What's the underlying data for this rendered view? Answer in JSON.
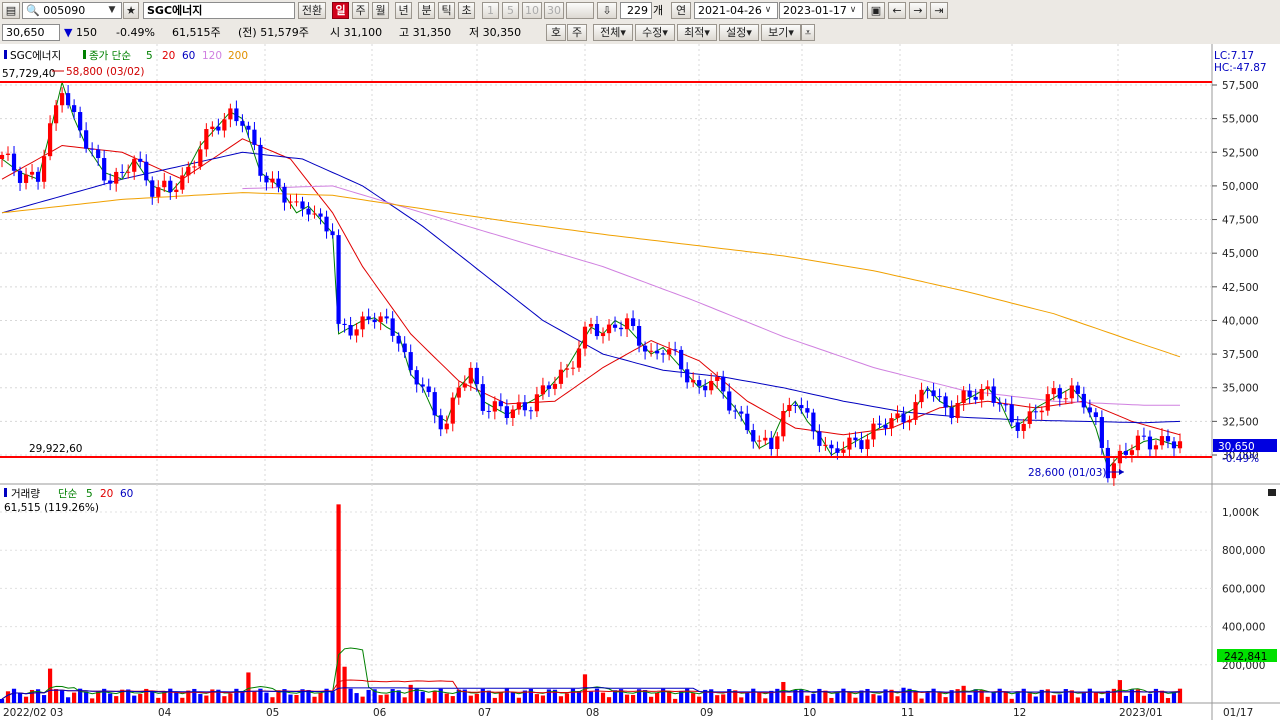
{
  "toolbar": {
    "code": "005090",
    "star": "★",
    "name": "SGC에너지",
    "switch_label": "전환",
    "period_tabs": [
      "일",
      "주",
      "월",
      "년",
      "분",
      "틱",
      "초"
    ],
    "minute_tabs": [
      "1",
      "5",
      "10",
      "30"
    ],
    "count": "229",
    "count_unit": "개",
    "range_label": "연",
    "date_from": "2021-04-26",
    "date_to": "2023-01-17",
    "save_icon": "save-icon"
  },
  "info_bar": {
    "price": "30,650",
    "change_arrow": "▼",
    "change": "150",
    "change_pct": "-0.49%",
    "volume": "61,515주",
    "prev_volume": "(전) 51,579주",
    "open": "시 31,100",
    "high": "고 31,350",
    "low": "저 30,350",
    "btn_ho": "호",
    "btn_ju": "주",
    "menus": [
      "전체",
      "수정",
      "최적",
      "설정",
      "보기"
    ]
  },
  "legend": {
    "name": "SGC에너지",
    "ma_label": "종가 단순",
    "ma_periods": [
      "5",
      "20",
      "60",
      "120",
      "200"
    ],
    "ma_colors": [
      "#008000",
      "#e00000",
      "#0000c0",
      "#d080e0",
      "#f0a000"
    ],
    "vol_label": "거래량",
    "vol_ma_label": "단순",
    "vol_ma_periods": [
      "5",
      "20",
      "60"
    ],
    "vol_ma_colors": [
      "#008000",
      "#e00000",
      "#0000c0"
    ],
    "vol_value": "61,515 (119.26%)",
    "lc": "LC:7.17",
    "hc": "HC:-47.87"
  },
  "annotations": {
    "high_level": "57,729,40",
    "high_note": "58,800 (03/02)",
    "low_level": "29,922,60",
    "low_note": "28,600 (01/03)",
    "current_price": "30,650",
    "current_pct": "-0.49%",
    "vol_marker": "242,841"
  },
  "colors": {
    "up": "#ff0000",
    "down": "#0000ff",
    "ref_line": "#ff0000"
  },
  "chart_data": [
    {
      "type": "candlestick",
      "title": "SGC에너지",
      "y_ticks": [
        "57,500",
        "55,000",
        "52,500",
        "50,000",
        "47,500",
        "45,000",
        "42,500",
        "40,000",
        "37,500",
        "35,000",
        "32,500",
        "30,000"
      ],
      "x_ticks": [
        "2022/02 03",
        "04",
        "05",
        "06",
        "07",
        "08",
        "09",
        "10",
        "11",
        "12",
        "2023/01",
        "01/17"
      ],
      "ylim": [
        27500,
        60500
      ],
      "reference_lines": [
        57729,
        29922
      ],
      "high": {
        "value": 58800,
        "date": "03/02"
      },
      "low": {
        "value": 28600,
        "date": "01/03"
      },
      "close_path": [
        [
          0,
          52000
        ],
        [
          3,
          51000
        ],
        [
          6,
          50500
        ],
        [
          8,
          54000
        ],
        [
          10,
          57700
        ],
        [
          12,
          55000
        ],
        [
          14,
          53000
        ],
        [
          17,
          51000
        ],
        [
          20,
          50500
        ],
        [
          22,
          52000
        ],
        [
          25,
          50000
        ],
        [
          28,
          49500
        ],
        [
          30,
          50500
        ],
        [
          33,
          53000
        ],
        [
          36,
          54500
        ],
        [
          38,
          55500
        ],
        [
          40,
          55000
        ],
        [
          43,
          51000
        ],
        [
          46,
          50000
        ],
        [
          49,
          48000
        ],
        [
          51,
          48500
        ],
        [
          53,
          47500
        ],
        [
          55,
          46500
        ],
        [
          56,
          39000
        ],
        [
          58,
          39500
        ],
        [
          60,
          40000
        ],
        [
          62,
          40200
        ],
        [
          64,
          39500
        ],
        [
          66,
          39000
        ],
        [
          68,
          36000
        ],
        [
          70,
          35000
        ],
        [
          72,
          33000
        ],
        [
          74,
          32500
        ],
        [
          76,
          35000
        ],
        [
          78,
          36000
        ],
        [
          80,
          34000
        ],
        [
          82,
          33500
        ],
        [
          84,
          33000
        ],
        [
          86,
          33500
        ],
        [
          88,
          34000
        ],
        [
          90,
          34500
        ],
        [
          92,
          35500
        ],
        [
          94,
          36500
        ],
        [
          96,
          38000
        ],
        [
          98,
          39500
        ],
        [
          100,
          39000
        ],
        [
          102,
          40000
        ],
        [
          104,
          39500
        ],
        [
          106,
          38500
        ],
        [
          108,
          37500
        ],
        [
          110,
          38000
        ],
        [
          112,
          37000
        ],
        [
          114,
          36000
        ],
        [
          116,
          35000
        ],
        [
          118,
          35500
        ],
        [
          120,
          34500
        ],
        [
          122,
          33500
        ],
        [
          124,
          32000
        ],
        [
          126,
          30500
        ],
        [
          128,
          31000
        ],
        [
          130,
          33000
        ],
        [
          132,
          34000
        ],
        [
          134,
          32500
        ],
        [
          136,
          31500
        ],
        [
          138,
          30000
        ],
        [
          140,
          30500
        ],
        [
          142,
          31000
        ],
        [
          144,
          31500
        ],
        [
          146,
          32000
        ],
        [
          148,
          32500
        ],
        [
          150,
          33000
        ],
        [
          152,
          33500
        ],
        [
          154,
          35000
        ],
        [
          156,
          34000
        ],
        [
          158,
          33500
        ],
        [
          160,
          34000
        ],
        [
          162,
          34500
        ],
        [
          164,
          35000
        ],
        [
          166,
          34000
        ],
        [
          168,
          32000
        ],
        [
          170,
          32500
        ],
        [
          172,
          33500
        ],
        [
          174,
          34000
        ],
        [
          176,
          34500
        ],
        [
          178,
          35000
        ],
        [
          180,
          34000
        ],
        [
          182,
          32000
        ],
        [
          184,
          29000
        ],
        [
          186,
          30000
        ],
        [
          188,
          30500
        ],
        [
          190,
          31000
        ],
        [
          192,
          31200
        ],
        [
          194,
          30900
        ],
        [
          196,
          30650
        ]
      ],
      "ma_series": [
        {
          "name": "20",
          "values_path": [
            [
              0,
              50500
            ],
            [
              10,
              53000
            ],
            [
              20,
              52500
            ],
            [
              30,
              50500
            ],
            [
              40,
              53500
            ],
            [
              48,
              52000
            ],
            [
              55,
              48000
            ],
            [
              60,
              44000
            ],
            [
              68,
              39000
            ],
            [
              76,
              35500
            ],
            [
              84,
              33800
            ],
            [
              92,
              34000
            ],
            [
              100,
              36500
            ],
            [
              108,
              38500
            ],
            [
              116,
              37000
            ],
            [
              124,
              34000
            ],
            [
              132,
              32000
            ],
            [
              140,
              31500
            ],
            [
              148,
              32000
            ],
            [
              156,
              33500
            ],
            [
              164,
              34000
            ],
            [
              172,
              33500
            ],
            [
              180,
              34000
            ],
            [
              188,
              32500
            ],
            [
              196,
              31500
            ]
          ]
        },
        {
          "name": "60",
          "values_path": [
            [
              0,
              48000
            ],
            [
              20,
              50500
            ],
            [
              40,
              52500
            ],
            [
              50,
              52000
            ],
            [
              60,
              50000
            ],
            [
              70,
              47000
            ],
            [
              80,
              43500
            ],
            [
              90,
              40000
            ],
            [
              100,
              37500
            ],
            [
              110,
              36300
            ],
            [
              120,
              35800
            ],
            [
              130,
              35000
            ],
            [
              140,
              34000
            ],
            [
              150,
              33200
            ],
            [
              160,
              32800
            ],
            [
              170,
              32600
            ],
            [
              180,
              32500
            ],
            [
              190,
              32400
            ],
            [
              196,
              32500
            ]
          ]
        },
        {
          "name": "120",
          "values_path": [
            [
              40,
              49800
            ],
            [
              55,
              50000
            ],
            [
              70,
              48000
            ],
            [
              85,
              46000
            ],
            [
              100,
              44000
            ],
            [
              115,
              41500
            ],
            [
              130,
              38800
            ],
            [
              145,
              36500
            ],
            [
              160,
              34800
            ],
            [
              175,
              34000
            ],
            [
              190,
              33700
            ],
            [
              196,
              33700
            ]
          ]
        },
        {
          "name": "200",
          "values_path": [
            [
              0,
              48000
            ],
            [
              20,
              49000
            ],
            [
              40,
              49500
            ],
            [
              55,
              49300
            ],
            [
              70,
              48300
            ],
            [
              85,
              47300
            ],
            [
              100,
              46400
            ],
            [
              115,
              45600
            ],
            [
              130,
              44800
            ],
            [
              145,
              43700
            ],
            [
              160,
              42200
            ],
            [
              175,
              40500
            ],
            [
              188,
              38500
            ],
            [
              196,
              37300
            ]
          ]
        }
      ]
    },
    {
      "type": "bar",
      "title": "거래량",
      "y_ticks": [
        "1,000K",
        "800,000",
        "600,000",
        "400,000",
        "200,000"
      ],
      "ylim": [
        0,
        1100000
      ],
      "spikes": [
        [
          56,
          1040000
        ],
        [
          57,
          190000
        ],
        [
          8,
          180000
        ],
        [
          41,
          160000
        ],
        [
          97,
          150000
        ],
        [
          186,
          120000
        ],
        [
          160,
          90000
        ],
        [
          130,
          110000
        ],
        [
          68,
          95000
        ],
        [
          150,
          80000
        ]
      ],
      "base_level": 60000
    }
  ]
}
